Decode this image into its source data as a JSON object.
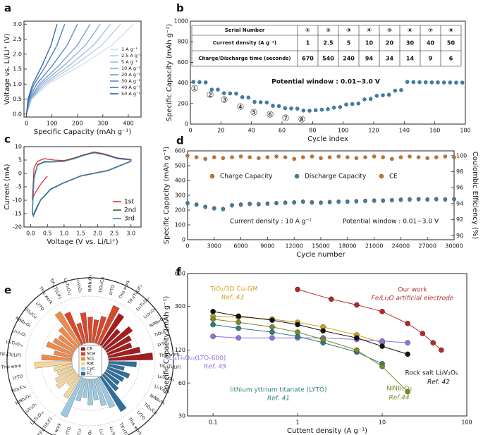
{
  "chart_data": [
    {
      "type": "line",
      "label": "a",
      "xlabel": "Specific Capacity (mAh g⁻¹)",
      "ylabel": "Voltage vs. Li/Li⁺ (V)",
      "xlim": [
        -10,
        450
      ],
      "xticks": [
        0,
        100,
        200,
        300,
        400
      ],
      "ylim": [
        -0.1,
        3.1
      ],
      "yticks": [
        {
          "value": 0,
          "label": "0.0"
        },
        {
          "value": 0.5,
          "label": "0.5"
        },
        {
          "value": 1,
          "label": "1.0"
        },
        {
          "value": 1.5,
          "label": "1.5"
        },
        {
          "value": 2,
          "label": "2.0"
        },
        {
          "value": 2.5,
          "label": "2.5"
        },
        {
          "value": 3,
          "label": "3.0"
        }
      ],
      "legend": "right",
      "series": [
        {
          "name": "1  A g⁻¹",
          "color": "#d0def0",
          "x": [
            0,
            21,
            84,
            210,
            336,
            420
          ],
          "values": [
            0.01,
            0.5,
            1.0,
            1.6,
            2.3,
            3.0
          ]
        },
        {
          "name": "2.5  A g⁻¹",
          "color": "#b8cde8",
          "x": [
            0,
            19,
            74,
            185,
            296,
            370
          ],
          "values": [
            0.01,
            0.5,
            1.0,
            1.6,
            2.3,
            3.0
          ]
        },
        {
          "name": "5  A g⁻¹",
          "color": "#a0bce0",
          "x": [
            0,
            17,
            66,
            165,
            264,
            330
          ],
          "values": [
            0.01,
            0.5,
            1.0,
            1.6,
            2.3,
            3.0
          ]
        },
        {
          "name": "10  A g⁻¹",
          "color": "#88aad6",
          "x": [
            0,
            15,
            58,
            145,
            232,
            290
          ],
          "values": [
            0.01,
            0.5,
            1.0,
            1.6,
            2.3,
            3.0
          ]
        },
        {
          "name": "20  A g⁻¹",
          "color": "#7099cc",
          "x": [
            0,
            13,
            50,
            125,
            200,
            250
          ],
          "values": [
            0.01,
            0.5,
            1.0,
            1.6,
            2.3,
            3.0
          ]
        },
        {
          "name": "30  A g⁻¹",
          "color": "#5887c2",
          "x": [
            0,
            10,
            40,
            100,
            160,
            200
          ],
          "values": [
            0.01,
            0.5,
            1.0,
            1.6,
            2.3,
            3.0
          ]
        },
        {
          "name": "40  A g⁻¹",
          "color": "#4176b8",
          "x": [
            0,
            8,
            30,
            75,
            120,
            150
          ],
          "values": [
            0.01,
            0.5,
            1.0,
            1.6,
            2.3,
            3.0
          ]
        },
        {
          "name": "50  A g⁻¹",
          "color": "#2b62a8",
          "x": [
            0,
            6,
            24,
            60,
            96,
            120
          ],
          "values": [
            0.01,
            0.5,
            1.0,
            1.6,
            2.3,
            3.0
          ]
        }
      ]
    },
    {
      "type": "scatter",
      "label": "b",
      "xlabel": "Cycle index",
      "ylabel": "Specific Capacity (mAh g⁻¹)",
      "xlim": [
        0,
        180
      ],
      "xticks": [
        0,
        20,
        40,
        60,
        80,
        100,
        120,
        140,
        160,
        180
      ],
      "ylim": [
        0,
        1000
      ],
      "yticks": [
        0,
        200,
        400,
        600,
        800,
        1000
      ],
      "annotations": [
        "①",
        "②",
        "③",
        "④",
        "⑤",
        "⑥",
        "⑦",
        "⑧"
      ],
      "note": "Potential window : 0.01~3.0 V",
      "table": {
        "rows": [
          [
            "Serial Number",
            "①",
            "②",
            "③",
            "④",
            "⑤",
            "⑥",
            "⑦",
            "⑧"
          ],
          [
            "Current density (A g⁻¹)",
            1,
            2.5,
            5,
            10,
            20,
            30,
            40,
            50
          ],
          [
            "Charge/Discharge time (seconds)",
            670,
            540,
            240,
            94,
            34,
            14,
            9,
            6
          ]
        ]
      },
      "x": [
        2,
        6,
        10,
        14,
        18,
        22,
        26,
        30,
        34,
        38,
        42,
        46,
        50,
        54,
        58,
        62,
        66,
        70,
        74,
        78,
        82,
        86,
        90,
        94,
        98,
        102,
        106,
        110,
        114,
        118,
        122,
        126,
        130,
        134,
        138,
        142,
        146,
        150,
        154,
        158,
        162,
        166,
        170,
        174,
        178
      ],
      "series": [
        {
          "color": "#3d7fa6",
          "values": [
            410,
            408,
            405,
            335,
            335,
            300,
            298,
            296,
            262,
            258,
            215,
            212,
            210,
            178,
            175,
            155,
            152,
            150,
            132,
            130,
            135,
            140,
            145,
            160,
            165,
            190,
            195,
            200,
            240,
            245,
            275,
            280,
            285,
            325,
            330,
            410,
            408,
            407,
            406,
            405,
            405,
            404,
            404,
            403,
            403
          ]
        }
      ]
    },
    {
      "type": "line",
      "label": "c",
      "xlabel": "Voltage (V vs. Li/Li⁺)",
      "ylabel": "Current (mA)",
      "xlim": [
        -0.2,
        3.3
      ],
      "xticks": [
        {
          "value": 0,
          "label": "0.0"
        },
        {
          "value": 0.5,
          "label": "0.5"
        },
        {
          "value": 1,
          "label": "1.0"
        },
        {
          "value": 1.5,
          "label": "1.5"
        },
        {
          "value": 2,
          "label": "2.0"
        },
        {
          "value": 2.5,
          "label": "2.5"
        },
        {
          "value": 3,
          "label": "3.0"
        }
      ],
      "ylim": [
        -20,
        10
      ],
      "yticks": [
        -20,
        -15,
        -10,
        -5,
        0,
        5,
        10
      ],
      "legend": "lower right",
      "series": [
        {
          "name": "1st",
          "color": "#e03030",
          "x": [
            0.5,
            0.4,
            0.3,
            0.2,
            0.1,
            0.05,
            0.1,
            0.2,
            0.4,
            0.7,
            1.0,
            1.3,
            1.6,
            1.9,
            2.2,
            2.6,
            3.0,
            3.0,
            2.7,
            2.3,
            1.9,
            1.5,
            1.2,
            1.0
          ],
          "values": [
            -1,
            -2.5,
            -4,
            -6,
            -8,
            -10,
            2,
            4.5,
            5.5,
            5,
            4.8,
            5.8,
            7,
            8,
            7.3,
            5.8,
            5.2,
            4.5,
            3,
            1,
            0,
            -1,
            -2.5,
            -3.5
          ]
        },
        {
          "name": "2nd",
          "color": "#2e5e2e",
          "x": [
            3.0,
            2.7,
            2.3,
            1.9,
            1.5,
            1.2,
            1.0,
            0.6,
            0.3,
            0.15,
            0.08,
            0.05,
            0.1,
            0.2,
            0.4,
            0.7,
            1.0,
            1.3,
            1.6,
            1.9,
            2.2,
            2.6,
            3.0,
            3.0
          ],
          "values": [
            4.6,
            3.1,
            1.1,
            0.1,
            -0.9,
            -2.4,
            -3.4,
            -5.8,
            -9.8,
            -13.5,
            -15.5,
            -14.5,
            -1.5,
            3.2,
            4.4,
            4.4,
            4.6,
            5.6,
            6.9,
            7.8,
            7.1,
            5.6,
            5.1,
            4.6
          ]
        },
        {
          "name": "3rd",
          "color": "#3a7fb8",
          "x": [
            3.0,
            2.7,
            2.3,
            1.9,
            1.5,
            1.2,
            1.0,
            0.6,
            0.3,
            0.15,
            0.08,
            0.05,
            0.1,
            0.2,
            0.4,
            0.7,
            1.0,
            1.3,
            1.6,
            1.9,
            2.2,
            2.6,
            3.0,
            3.0
          ],
          "values": [
            4.5,
            3,
            1,
            0,
            -1,
            -2.5,
            -3.5,
            -6,
            -10,
            -14,
            -16,
            -15,
            -2,
            3,
            4.2,
            4.3,
            4.5,
            5.5,
            6.8,
            7.7,
            7,
            5.5,
            5,
            4.5
          ]
        }
      ]
    },
    {
      "type": "scatter",
      "label": "d",
      "xlabel": "Cycle number",
      "ylabel": "Specific Capacity (mAh g⁻¹)",
      "y2label": "Coulombic Efficiency (%)",
      "xlim": [
        0,
        30000
      ],
      "xticks": [
        0,
        3000,
        6000,
        9000,
        12000,
        15000,
        18000,
        21000,
        24000,
        27000,
        30000
      ],
      "ylim": [
        0,
        600
      ],
      "yticks": [
        0,
        100,
        200,
        300,
        400,
        500,
        600
      ],
      "y2lim": [
        89.5,
        100.6
      ],
      "y2ticks": [
        90,
        92,
        94,
        96,
        98,
        100
      ],
      "legend": "center",
      "annotations": [
        "Current density : 10 A g⁻¹",
        "Potential window : 0.01~3.0 V"
      ],
      "x": [
        0,
        1000,
        2000,
        3000,
        4000,
        5000,
        6000,
        7000,
        8000,
        9000,
        10000,
        11000,
        12000,
        13000,
        14000,
        15000,
        16000,
        17000,
        18000,
        19000,
        20000,
        21000,
        22000,
        23000,
        24000,
        25000,
        26000,
        27000,
        28000,
        29000,
        30000
      ],
      "series": [
        {
          "name": "Charge Capacity",
          "color": "#c8742a",
          "values": [
            249,
            239,
            224,
            214,
            209,
            234,
            239,
            244,
            242,
            246,
            249,
            252,
            254,
            259,
            254,
            252,
            256,
            259,
            259,
            262,
            264,
            266,
            266,
            269,
            272,
            274,
            276,
            274,
            276,
            274,
            276
          ]
        },
        {
          "name": "Discharge Capacity",
          "color": "#3d7fa6",
          "values": [
            245,
            235,
            220,
            210,
            205,
            230,
            235,
            240,
            238,
            242,
            245,
            248,
            250,
            255,
            250,
            248,
            252,
            255,
            255,
            258,
            260,
            262,
            262,
            265,
            268,
            270,
            272,
            270,
            272,
            270,
            272
          ]
        },
        {
          "name": "CE",
          "color": "#c8742a",
          "axis": "y2",
          "values": [
            100.0,
            99.8,
            99.6,
            99.8,
            99.7,
            99.8,
            99.9,
            99.8,
            99.7,
            99.8,
            99.9,
            99.8,
            99.6,
            99.8,
            99.9,
            99.7,
            99.8,
            99.9,
            99.8,
            99.7,
            99.8,
            99.9,
            99.8,
            99.6,
            99.8,
            99.9,
            99.8,
            99.7,
            99.8,
            99.9,
            99.8
          ]
        }
      ]
    },
    {
      "type": "radial_bar",
      "label": "e",
      "rlim": [
        0,
        100
      ],
      "groups": [
        {
          "name": "CR",
          "color": "#a61c1c",
          "categories": [
            "This work",
            "LYTO",
            "TiO₂/Cu",
            "NiNb₂O₆",
            "Li₃V₂O₅",
            "Li₄Ti₅O₁₂",
            "TiF₃(Ti/LiF)"
          ],
          "values": [
            95,
            70,
            55,
            60,
            72,
            50,
            80
          ]
        },
        {
          "name": "SCH",
          "color": "#d9482b",
          "categories": [
            "This work",
            "LYTO",
            "TiO₂/Cu",
            "NiNb₂O₆",
            "Li₃V₂O₅",
            "Li₄Ti₅O₁₂",
            "TiF₃(Ti/LiF)"
          ],
          "values": [
            90,
            60,
            50,
            55,
            65,
            45,
            75
          ]
        },
        {
          "name": "SCL",
          "color": "#f08a4b",
          "categories": [
            "This work",
            "LYTO",
            "TiO₂/Cu",
            "NiNb₂O₆",
            "Li₃V₂O₅",
            "Li₄Ti₅O₁₂",
            "TiF₃(Ti/LiF)"
          ],
          "values": [
            85,
            55,
            45,
            50,
            60,
            40,
            65
          ]
        },
        {
          "name": "Rat.",
          "color": "#f6d69a",
          "categories": [
            "This work",
            "LYTO",
            "TiO₂/Cu",
            "NiNb₂O₆",
            "Li₃V₂O₅",
            "Li₄Ti₅O₁₂",
            "TiF₃(Ti/LiF)"
          ],
          "values": [
            80,
            40,
            35,
            45,
            50,
            30,
            55
          ]
        },
        {
          "name": "Cyc.",
          "color": "#9ecae1",
          "categories": [
            "This work",
            "LYTO",
            "TiO₂/Cu",
            "NiNb₂O₆",
            "Li₃V₂O₅",
            "Li₄Ti₅O₁₂",
            "TiF₃(Ti/LiF)"
          ],
          "values": [
            92,
            50,
            40,
            55,
            45,
            60,
            70
          ]
        },
        {
          "name": "FC",
          "color": "#2f6f9f",
          "categories": [
            "This work",
            "LYTO",
            "TiO₂/Cu",
            "NiNb₂O₆",
            "Li₃V₂O₅",
            "Li₄Ti₅O₁₂",
            "TiF₃(Ti/LiF)"
          ],
          "values": [
            88,
            45,
            38,
            42,
            50,
            35,
            60
          ]
        }
      ]
    },
    {
      "type": "line",
      "label": "f",
      "markers": true,
      "xlog": true,
      "ylog": true,
      "xlabel": "Cuttent density (A g⁻¹)",
      "ylabel": "Specific Capacity (mAh g⁻¹)",
      "xlim": [
        0.05,
        100
      ],
      "xticks": [
        0.1,
        1,
        10,
        100
      ],
      "ylim": [
        30,
        600
      ],
      "yticks": [
        30,
        60,
        120,
        300,
        600
      ],
      "series": [
        {
          "name": "Our work",
          "subtitle": "Fe/Li₂O artificial electrode",
          "color": "#b22a2a",
          "x": [
            1,
            2.5,
            5,
            10,
            20,
            30,
            40,
            50
          ],
          "values": [
            430,
            350,
            310,
            270,
            210,
            170,
            140,
            120
          ]
        },
        {
          "name": "TiO₂/3D Cu-GM",
          "subtitle": "Ref. 43",
          "color": "#d4a017",
          "x": [
            0.1,
            0.2,
            0.5,
            1,
            2,
            5,
            10
          ],
          "values": [
            245,
            240,
            230,
            215,
            195,
            165,
            140
          ]
        },
        {
          "name": "Li₄Ti₅O₁₂(LTO-600)",
          "subtitle": "Ref. 45",
          "color": "#9370db",
          "x": [
            0.1,
            0.2,
            0.5,
            1,
            2,
            5,
            10,
            20
          ],
          "values": [
            160,
            155,
            155,
            155,
            155,
            150,
            145,
            140
          ]
        },
        {
          "name": "lithium yttrium titanate (LYTO)",
          "subtitle": "Ref. 41",
          "color": "#2e7d7d",
          "x": [
            0.1,
            0.2,
            0.5,
            1,
            2,
            5,
            10
          ],
          "values": [
            205,
            190,
            175,
            160,
            140,
            115,
            90
          ]
        },
        {
          "name": "Rock salt Li₃V₂O₅",
          "subtitle": "Ref. 42",
          "color": "#111111",
          "x": [
            0.1,
            0.2,
            0.5,
            1,
            2,
            5,
            10,
            20
          ],
          "values": [
            270,
            245,
            225,
            205,
            180,
            155,
            130,
            110
          ]
        },
        {
          "name": "NiNb₂O₆",
          "subtitle": "Ref.44",
          "color": "#7a8a2a",
          "x": [
            0.1,
            0.2,
            0.5,
            1,
            2,
            5,
            10,
            20
          ],
          "values": [
            230,
            215,
            195,
            175,
            150,
            120,
            85,
            50
          ]
        }
      ]
    }
  ]
}
